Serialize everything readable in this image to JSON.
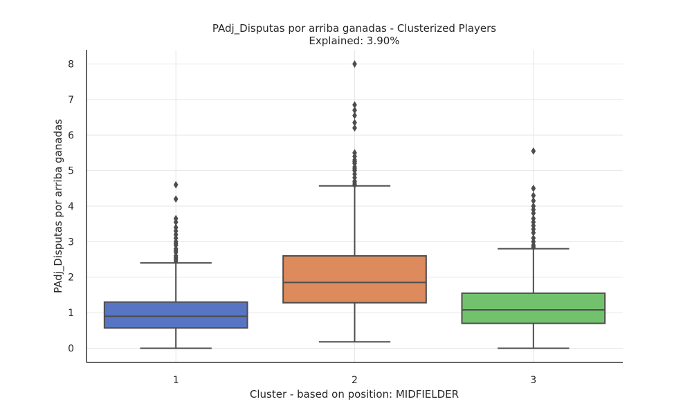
{
  "chart_data": {
    "type": "box",
    "title": "PAdj_Disputas por arriba ganadas - Clusterized Players",
    "subtitle": "Explained: 3.90%",
    "xlabel": "Cluster - based on position: MIDFIELDER",
    "ylabel": "PAdj_Disputas por arriba ganadas",
    "ylim": [
      -0.4,
      8.4
    ],
    "yticks": [
      "0",
      "1",
      "2",
      "3",
      "4",
      "5",
      "6",
      "7",
      "8"
    ],
    "grid": true,
    "categories": [
      "1",
      "2",
      "3"
    ],
    "boxes": [
      {
        "category": "1",
        "color": "#5875c4",
        "whisker_low": 0.0,
        "q1": 0.57,
        "median": 0.9,
        "q3": 1.3,
        "whisker_high": 2.4,
        "outliers": [
          2.45,
          2.5,
          2.55,
          2.6,
          2.7,
          2.75,
          2.8,
          2.9,
          2.95,
          3.0,
          3.1,
          3.2,
          3.3,
          3.4,
          3.55,
          3.65,
          4.2,
          4.6
        ]
      },
      {
        "category": "2",
        "color": "#dd8a5c",
        "whisker_low": 0.18,
        "q1": 1.28,
        "median": 1.85,
        "q3": 2.6,
        "whisker_high": 4.57,
        "outliers": [
          4.6,
          4.65,
          4.7,
          4.8,
          4.9,
          5.0,
          5.05,
          5.1,
          5.2,
          5.25,
          5.3,
          5.4,
          5.5,
          6.2,
          6.35,
          6.55,
          6.7,
          6.85,
          8.0
        ]
      },
      {
        "category": "3",
        "color": "#72c16d",
        "whisker_low": 0.0,
        "q1": 0.7,
        "median": 1.08,
        "q3": 1.55,
        "whisker_high": 2.8,
        "outliers": [
          2.85,
          2.9,
          3.0,
          3.1,
          3.25,
          3.35,
          3.45,
          3.55,
          3.65,
          3.8,
          3.9,
          4.0,
          4.15,
          4.3,
          4.5,
          5.55
        ]
      }
    ]
  }
}
